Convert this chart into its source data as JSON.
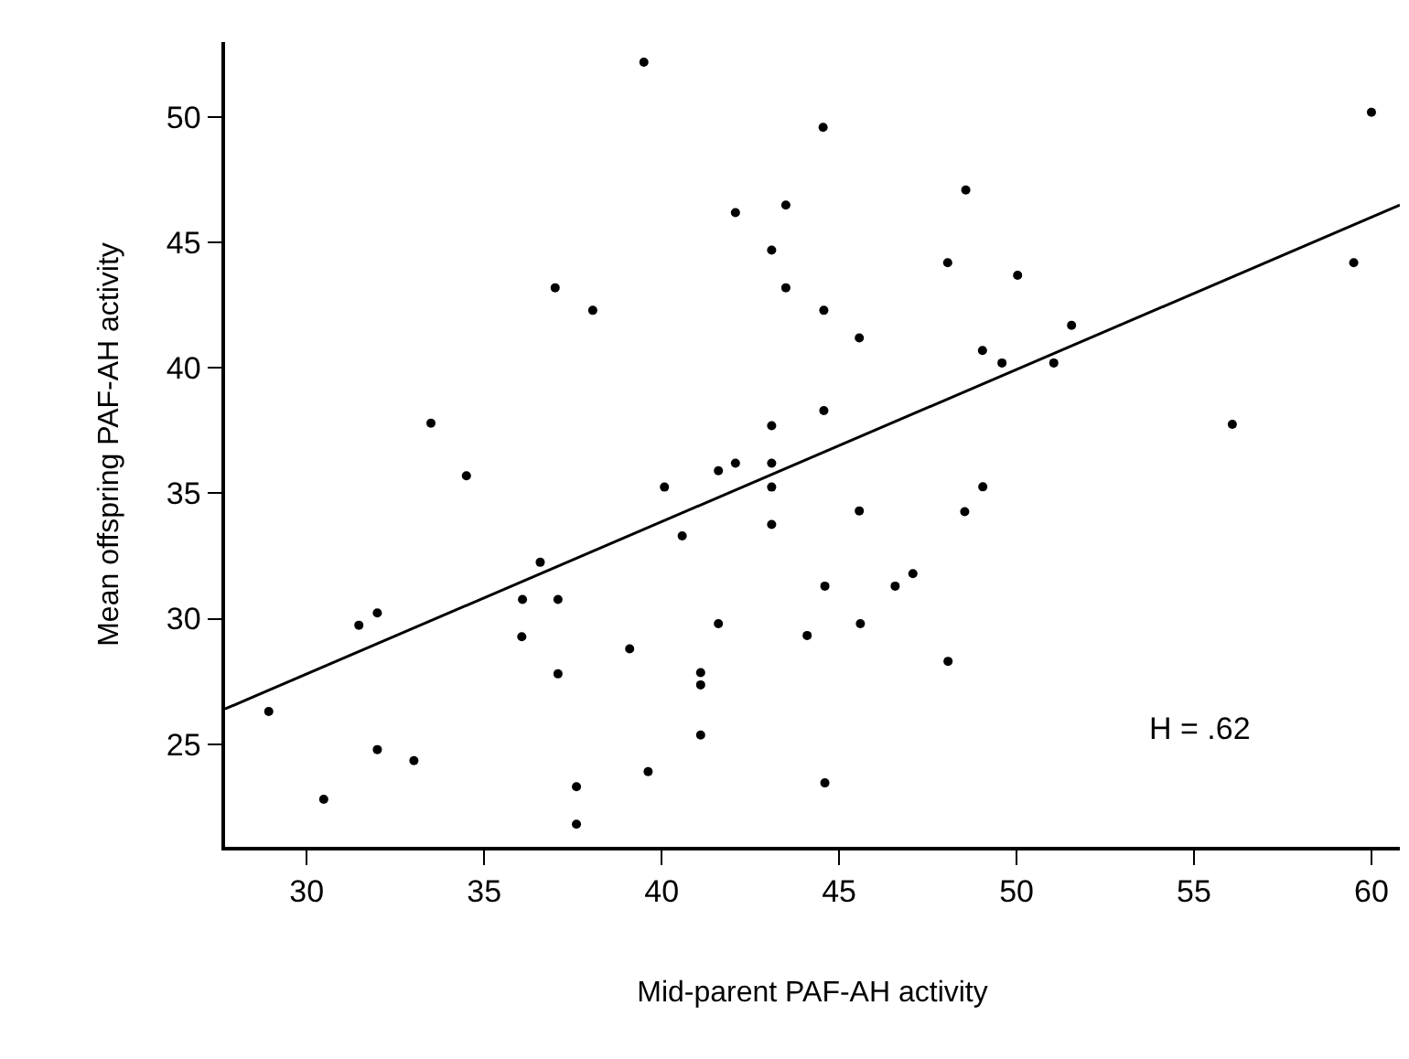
{
  "chart_data": {
    "type": "scatter",
    "xlabel": "Mid-parent PAF-AH activity",
    "ylabel": "Mean offspring PAF-AH activity",
    "annotations": [
      "H = .62"
    ],
    "xlim": [
      27.7,
      60.8
    ],
    "ylim": [
      20.9,
      53
    ],
    "xticks": [
      30,
      35,
      40,
      45,
      50,
      55,
      60
    ],
    "yticks": [
      25,
      30,
      35,
      40,
      45,
      50
    ],
    "grid": false,
    "marker": "circle",
    "series": [
      {
        "color": "#000000",
        "x": [
          39.5,
          44.55,
          42.08,
          43.5,
          43.1,
          43.5,
          37.0,
          38.06,
          33.5,
          34.5,
          43.1,
          41.6,
          42.08,
          43.1,
          40.08,
          43.1,
          43.1,
          48.57,
          48.06,
          50.03,
          44.57,
          45.57,
          51.55,
          49.04,
          49.59,
          51.05,
          59.5,
          60.0,
          56.08,
          44.57,
          49.05,
          45.57,
          48.54,
          40.58,
          36.58,
          36.08,
          37.08,
          31.47,
          31.99,
          36.06,
          41.6,
          39.1,
          37.08,
          41.1,
          41.1,
          28.93,
          41.1,
          31.99,
          33.02,
          30.48,
          37.6,
          39.62,
          37.6,
          44.6,
          46.58,
          47.08,
          44.1,
          45.6,
          48.07,
          44.6
        ],
        "values": [
          52.2,
          49.6,
          46.2,
          46.5,
          44.7,
          43.2,
          43.2,
          42.3,
          37.8,
          35.7,
          37.7,
          35.9,
          36.2,
          36.2,
          35.25,
          35.25,
          33.76,
          47.1,
          44.2,
          43.7,
          42.3,
          41.2,
          41.7,
          40.7,
          40.2,
          40.2,
          44.2,
          50.2,
          37.75,
          38.3,
          35.26,
          34.3,
          34.27,
          33.3,
          32.25,
          30.77,
          30.77,
          29.74,
          30.23,
          29.28,
          29.8,
          28.8,
          27.8,
          27.85,
          27.36,
          26.3,
          25.36,
          24.78,
          24.34,
          22.8,
          23.3,
          23.9,
          21.8,
          31.3,
          31.3,
          31.8,
          29.33,
          29.8,
          28.3,
          23.45
        ]
      },
      {
        "type": "line",
        "color": "#000000",
        "marker": "none",
        "line_style": "solid",
        "x": [
          27.7,
          60.8
        ],
        "values": [
          26.4,
          46.5
        ]
      }
    ]
  }
}
